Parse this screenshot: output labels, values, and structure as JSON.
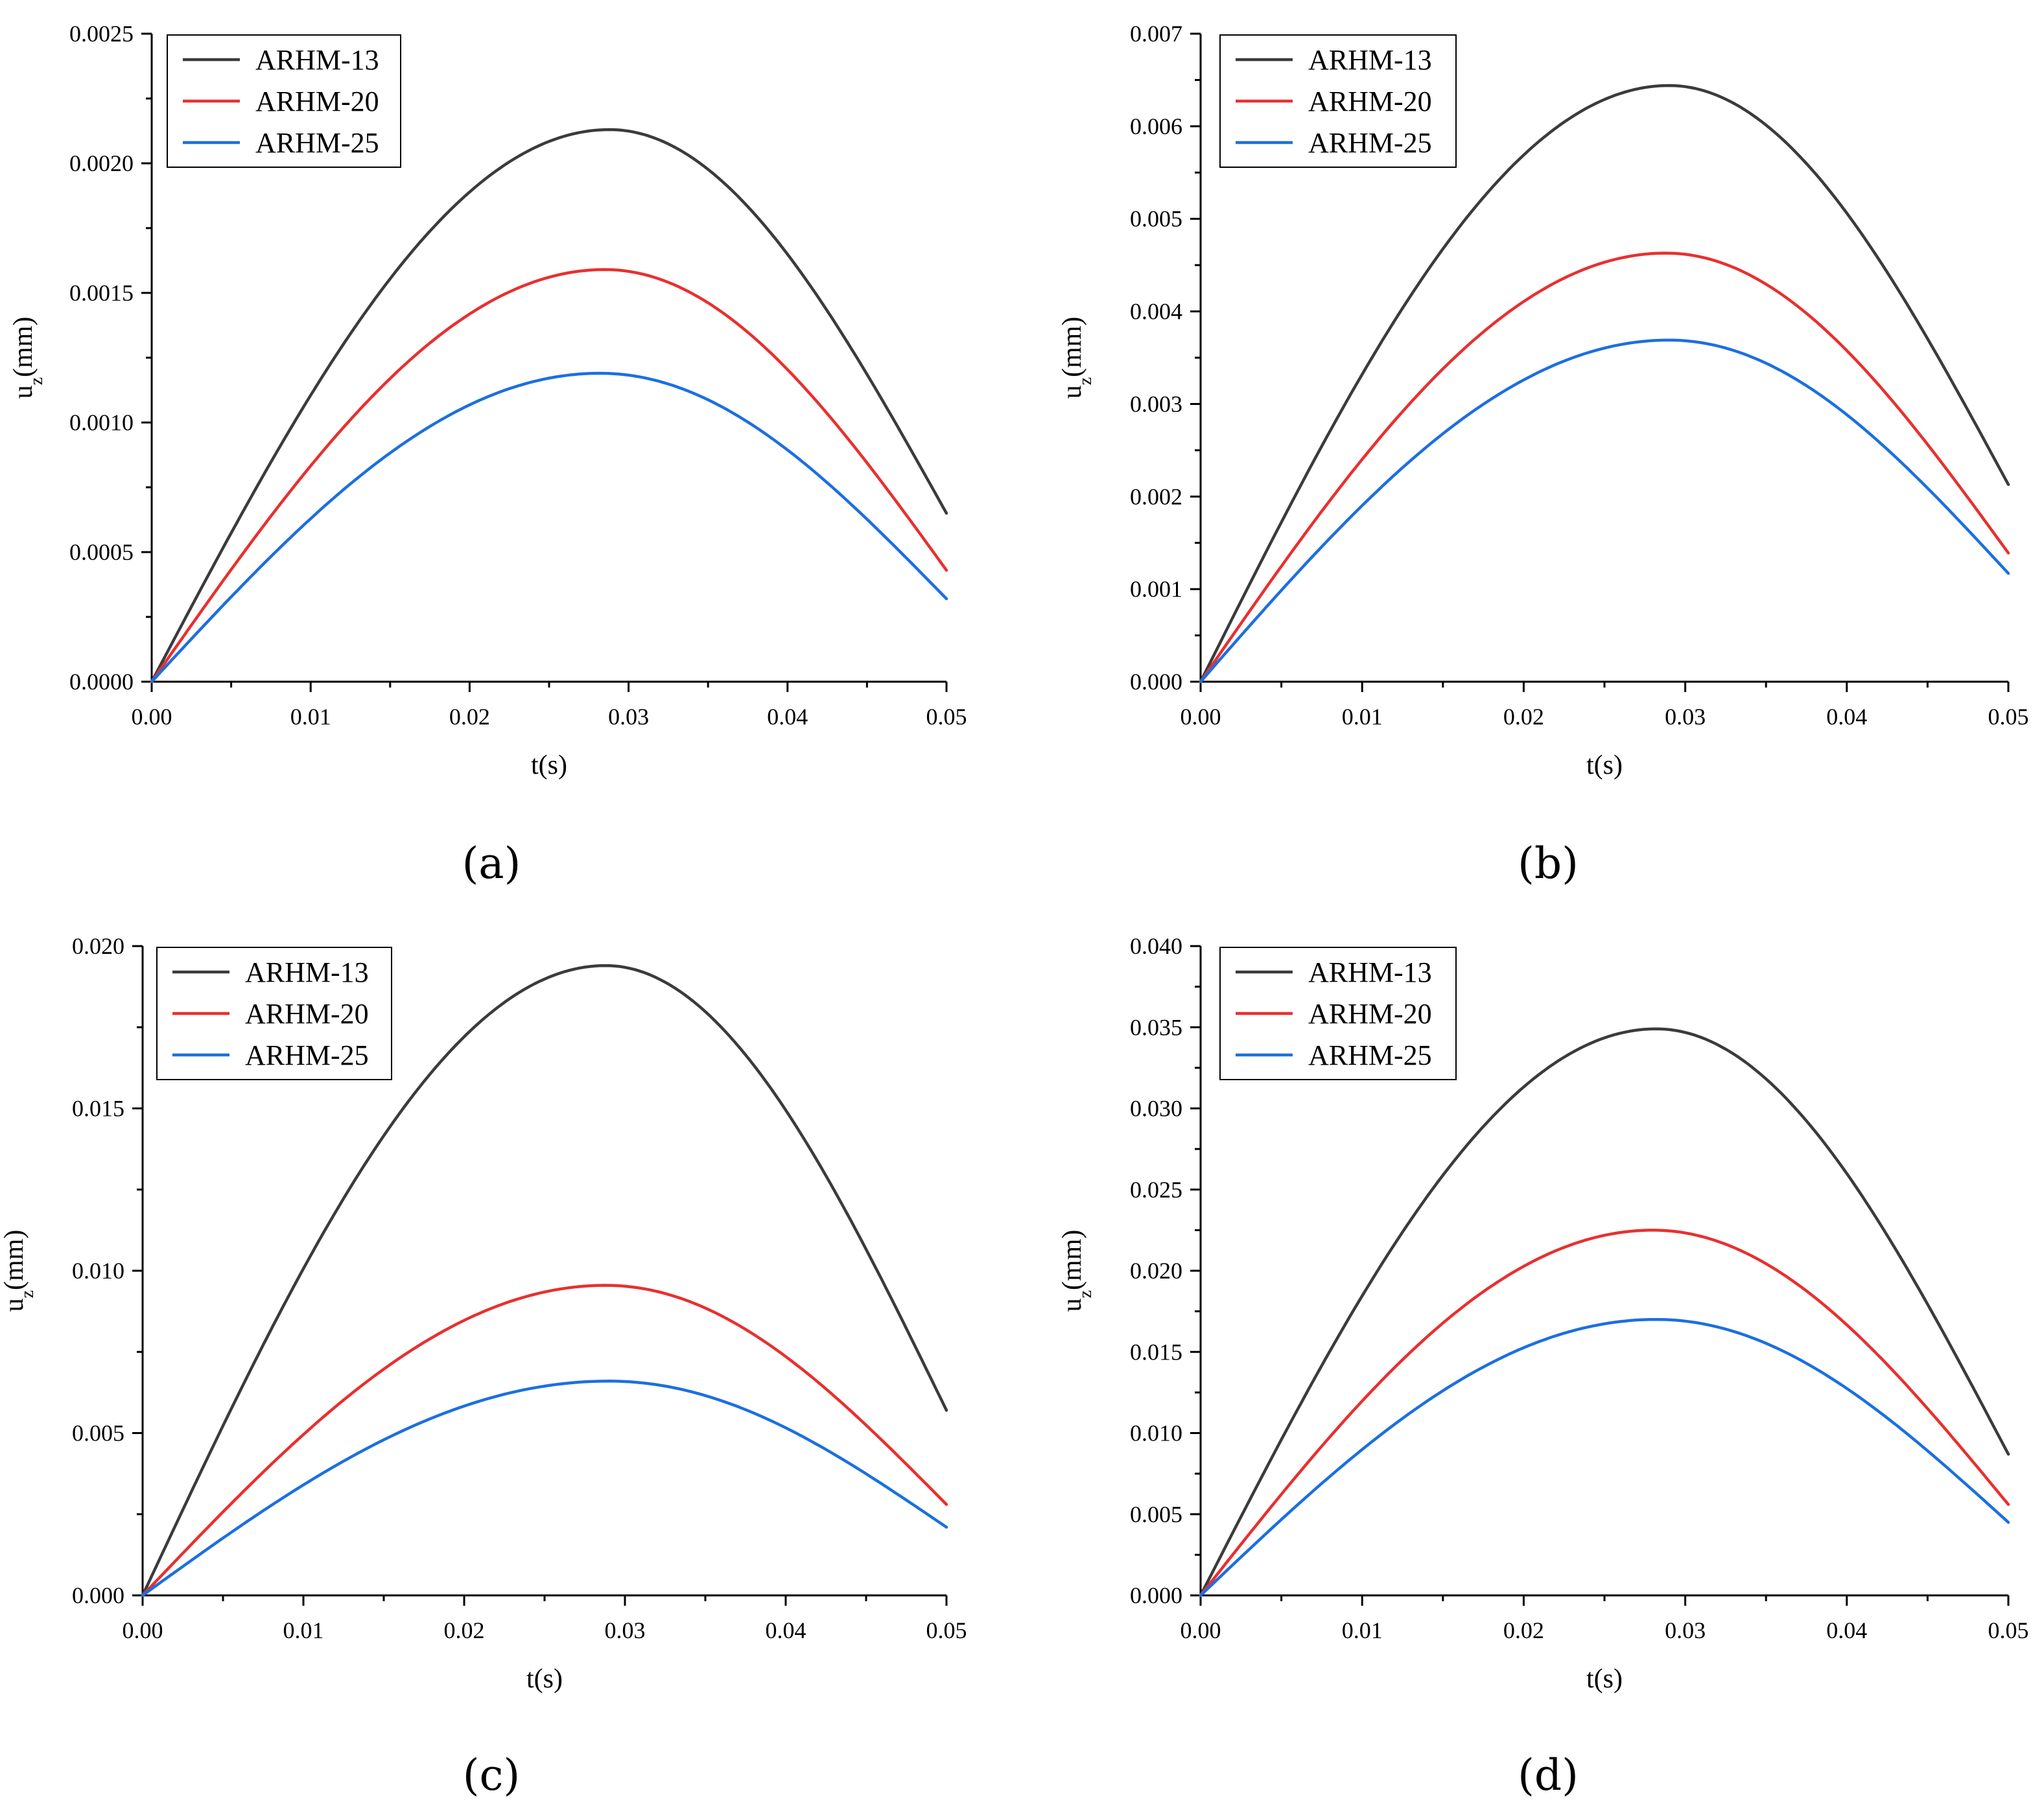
{
  "colors": {
    "ARHM-13": "#3b3b3b",
    "ARHM-20": "#e8302f",
    "ARHM-25": "#1c6fe0"
  },
  "chart_data": [
    {
      "type": "line",
      "panel": "(a)",
      "xlabel": "t(s)",
      "ylabel_main": "u",
      "ylabel_sub": "z",
      "ylabel_tail": "(mm)",
      "xlim": [
        0,
        0.05
      ],
      "ylim": [
        0,
        0.0025
      ],
      "x_ticks": [
        "0.00",
        "0.01",
        "0.02",
        "0.03",
        "0.04",
        "0.05"
      ],
      "y_ticks": [
        "0.0000",
        "0.0005",
        "0.0010",
        "0.0015",
        "0.0020",
        "0.0025"
      ],
      "legend_position": "top-left",
      "series": [
        {
          "name": "ARHM-13",
          "peak": 0.00213,
          "peak_t": 0.0288,
          "end": 0.00065
        },
        {
          "name": "ARHM-20",
          "peak": 0.00159,
          "peak_t": 0.0285,
          "end": 0.00043
        },
        {
          "name": "ARHM-25",
          "peak": 0.00119,
          "peak_t": 0.0282,
          "end": 0.00032
        }
      ]
    },
    {
      "type": "line",
      "panel": "(b)",
      "xlabel": "t(s)",
      "ylabel_main": "u",
      "ylabel_sub": "z",
      "ylabel_tail": "(mm)",
      "xlim": [
        0,
        0.05
      ],
      "ylim": [
        0,
        0.007
      ],
      "x_ticks": [
        "0.00",
        "0.01",
        "0.02",
        "0.03",
        "0.04",
        "0.05"
      ],
      "y_ticks": [
        "0.000",
        "0.001",
        "0.002",
        "0.003",
        "0.004",
        "0.005",
        "0.006",
        "0.007"
      ],
      "legend_position": "top-left",
      "series": [
        {
          "name": "ARHM-13",
          "peak": 0.00644,
          "peak_t": 0.029,
          "end": 0.00213
        },
        {
          "name": "ARHM-20",
          "peak": 0.00463,
          "peak_t": 0.0288,
          "end": 0.00139
        },
        {
          "name": "ARHM-25",
          "peak": 0.00369,
          "peak_t": 0.029,
          "end": 0.00117
        }
      ]
    },
    {
      "type": "line",
      "panel": "(c)",
      "xlabel": "t(s)",
      "ylabel_main": "u",
      "ylabel_sub": "z",
      "ylabel_tail": "(mm)",
      "xlim": [
        0,
        0.05
      ],
      "ylim": [
        0,
        0.02
      ],
      "x_ticks": [
        "0.00",
        "0.01",
        "0.02",
        "0.03",
        "0.04",
        "0.05"
      ],
      "y_ticks": [
        "0.000",
        "0.005",
        "0.010",
        "0.015",
        "0.020"
      ],
      "legend_position": "top-left",
      "series": [
        {
          "name": "ARHM-13",
          "peak": 0.0194,
          "peak_t": 0.0288,
          "end": 0.0057
        },
        {
          "name": "ARHM-20",
          "peak": 0.00955,
          "peak_t": 0.0288,
          "end": 0.0028
        },
        {
          "name": "ARHM-25",
          "peak": 0.0066,
          "peak_t": 0.029,
          "end": 0.0021
        }
      ]
    },
    {
      "type": "line",
      "panel": "(d)",
      "xlabel": "t(s)",
      "ylabel_main": "u",
      "ylabel_sub": "z",
      "ylabel_tail": "(mm)",
      "xlim": [
        0,
        0.05
      ],
      "ylim": [
        0,
        0.04
      ],
      "x_ticks": [
        "0.00",
        "0.01",
        "0.02",
        "0.03",
        "0.04",
        "0.05"
      ],
      "y_ticks": [
        "0.000",
        "0.005",
        "0.010",
        "0.015",
        "0.020",
        "0.025",
        "0.030",
        "0.035",
        "0.040"
      ],
      "legend_position": "top-left",
      "series": [
        {
          "name": "ARHM-13",
          "peak": 0.0349,
          "peak_t": 0.0282,
          "end": 0.0087
        },
        {
          "name": "ARHM-20",
          "peak": 0.0225,
          "peak_t": 0.028,
          "end": 0.0056
        },
        {
          "name": "ARHM-25",
          "peak": 0.017,
          "peak_t": 0.0282,
          "end": 0.0045
        }
      ]
    }
  ]
}
